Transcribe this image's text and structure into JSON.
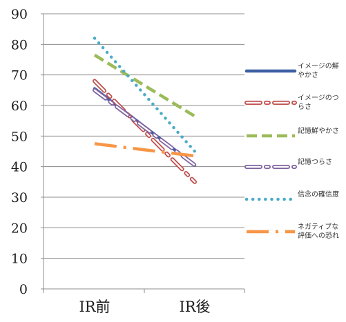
{
  "chart_data": {
    "type": "line",
    "categories": [
      "IR前",
      "IR後"
    ],
    "ylim": [
      0,
      90
    ],
    "yticks": [
      0,
      10,
      20,
      30,
      40,
      50,
      60,
      70,
      80,
      90
    ],
    "grid": true,
    "legend_position": "right",
    "series": [
      {
        "name": "イメージの鮮やかさ",
        "name_lines": [
          "イメージの鮮",
          "やかさ"
        ],
        "values": [
          65.5,
          40.5
        ],
        "color": "#3d5fa3",
        "style": "solid"
      },
      {
        "name": "イメージのつらさ",
        "name_lines": [
          "イメージのつ",
          "らさ"
        ],
        "values": [
          68,
          35
        ],
        "color": "#c0504d",
        "style": "dash-dot-outline"
      },
      {
        "name": "記憶鮮やかさ",
        "name_lines": [
          "記憶鮮やかさ"
        ],
        "values": [
          76.5,
          56.5
        ],
        "color": "#9bbb59",
        "style": "dash"
      },
      {
        "name": "記憶つらさ",
        "name_lines": [
          "記憶つらさ"
        ],
        "values": [
          65,
          40.5
        ],
        "color": "#7f63a1",
        "style": "dash-dot-outline"
      },
      {
        "name": "信念の確信度",
        "name_lines": [
          "信念の確信度"
        ],
        "values": [
          82,
          45
        ],
        "color": "#4bacc6",
        "style": "dot"
      },
      {
        "name": "ネガティブな評価への恐れ",
        "name_lines": [
          "ネガティブな",
          "評価への恐れ"
        ],
        "values": [
          47.5,
          43.5
        ],
        "color": "#f79646",
        "style": "dash-dot"
      }
    ]
  }
}
